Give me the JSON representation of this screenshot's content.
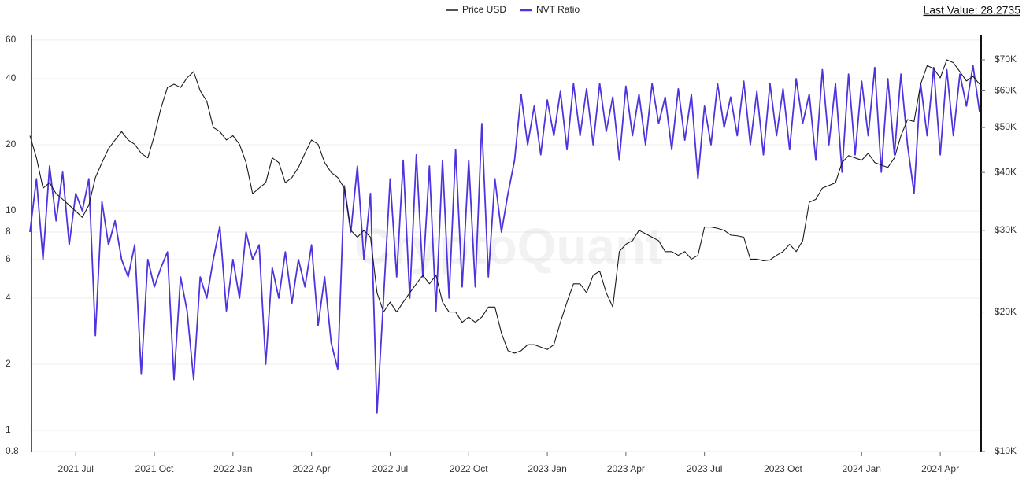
{
  "chart_data": {
    "type": "line",
    "log_scale": true,
    "grid": true,
    "legend_position": "top",
    "last_value_label": "Last Value: 28.2735",
    "watermark": "CryptoQuant",
    "categories": [
      null,
      null,
      null,
      null,
      null,
      null,
      null,
      "2021 Jul",
      null,
      null,
      null,
      null,
      null,
      null,
      null,
      null,
      null,
      null,
      null,
      "2021 Oct",
      null,
      null,
      null,
      null,
      null,
      null,
      null,
      null,
      null,
      null,
      null,
      "2022 Jan",
      null,
      null,
      null,
      null,
      null,
      null,
      null,
      null,
      null,
      null,
      null,
      "2022 Apr",
      null,
      null,
      null,
      null,
      null,
      null,
      null,
      null,
      null,
      null,
      null,
      "2022 Jul",
      null,
      null,
      null,
      null,
      null,
      null,
      null,
      null,
      null,
      null,
      null,
      "2022 Oct",
      null,
      null,
      null,
      null,
      null,
      null,
      null,
      null,
      null,
      null,
      null,
      "2023 Jan",
      null,
      null,
      null,
      null,
      null,
      null,
      null,
      null,
      null,
      null,
      null,
      "2023 Apr",
      null,
      null,
      null,
      null,
      null,
      null,
      null,
      null,
      null,
      null,
      null,
      "2023 Jul",
      null,
      null,
      null,
      null,
      null,
      null,
      null,
      null,
      null,
      null,
      null,
      "2023 Oct",
      null,
      null,
      null,
      null,
      null,
      null,
      null,
      null,
      null,
      null,
      null,
      "2024 Jan",
      null,
      null,
      null,
      null,
      null,
      null,
      null,
      null,
      null,
      null,
      null,
      "2024 Apr",
      null,
      null,
      null,
      null,
      null,
      null
    ],
    "ylim": [
      0.8,
      63
    ],
    "yticks": [
      0.8,
      1,
      2,
      4,
      6,
      8,
      10,
      20,
      40,
      60
    ],
    "y2lim": [
      10000,
      79000
    ],
    "y2ticks": [
      {
        "value": 10000,
        "label": "$10K"
      },
      {
        "value": 20000,
        "label": "$20K"
      },
      {
        "value": 30000,
        "label": "$30K"
      },
      {
        "value": 40000,
        "label": "$40K"
      },
      {
        "value": 50000,
        "label": "$50K"
      },
      {
        "value": 60000,
        "label": "$60K"
      },
      {
        "value": 70000,
        "label": "$70K"
      }
    ],
    "series": [
      {
        "name": "Price USD",
        "color": "#1a1a1a",
        "axis": "y2",
        "values": [
          48000,
          43000,
          37000,
          38000,
          36000,
          35000,
          34000,
          33000,
          32000,
          34000,
          39000,
          42000,
          45000,
          47000,
          49000,
          47000,
          46000,
          44000,
          43000,
          48000,
          55000,
          61000,
          62000,
          61000,
          64000,
          66000,
          60000,
          57000,
          50000,
          49000,
          47000,
          48000,
          46000,
          42000,
          36000,
          37000,
          38000,
          43000,
          42000,
          38000,
          39000,
          41000,
          44000,
          47000,
          46000,
          42000,
          40000,
          39000,
          37000,
          30000,
          29000,
          30000,
          29000,
          22000,
          20000,
          21000,
          20000,
          21000,
          22000,
          23000,
          24000,
          23000,
          24000,
          21000,
          20000,
          20000,
          19000,
          19500,
          19000,
          19500,
          20500,
          20500,
          18000,
          16500,
          16300,
          16500,
          17000,
          17000,
          16800,
          16600,
          17000,
          19000,
          21000,
          23000,
          23000,
          22000,
          24000,
          24500,
          22000,
          20500,
          27000,
          28000,
          28500,
          30000,
          29500,
          29000,
          28500,
          27000,
          27000,
          26500,
          27000,
          26000,
          26500,
          30500,
          30500,
          30300,
          30000,
          29300,
          29200,
          29000,
          26000,
          26000,
          25800,
          25900,
          26500,
          27000,
          28000,
          27000,
          28500,
          34500,
          35000,
          37000,
          37500,
          38000,
          42000,
          43500,
          43000,
          42500,
          44000,
          42000,
          41500,
          41000,
          43000,
          48000,
          52000,
          51500,
          62000,
          68000,
          67000,
          64000,
          70000,
          69000,
          66000,
          63000,
          64500,
          62000
        ]
      },
      {
        "name": "NVT Ratio",
        "color": "#4c35de",
        "axis": "y",
        "values": [
          8,
          14,
          6,
          16,
          9,
          15,
          7,
          12,
          10,
          14,
          2.7,
          11,
          7,
          9,
          6,
          5,
          7,
          1.8,
          6,
          4.5,
          5.5,
          6.5,
          1.7,
          5,
          3.5,
          1.7,
          5,
          4,
          6,
          8.5,
          3.5,
          6,
          4,
          8,
          6,
          7,
          2,
          5.5,
          4,
          6.5,
          3.8,
          6,
          4.5,
          7,
          3,
          5,
          2.5,
          1.9,
          13,
          8,
          16,
          6,
          12,
          1.2,
          4,
          14,
          5,
          17,
          4,
          18,
          5,
          16,
          3.5,
          17,
          4,
          19,
          4.5,
          17,
          4.5,
          25,
          5,
          14,
          8,
          12,
          17,
          34,
          20,
          30,
          18,
          32,
          22,
          35,
          19,
          38,
          22,
          36,
          20,
          38,
          23,
          33,
          17,
          37,
          22,
          34,
          20,
          38,
          25,
          33,
          19,
          36,
          21,
          34,
          14,
          30,
          20,
          38,
          24,
          33,
          22,
          39,
          20,
          35,
          18,
          38,
          22,
          36,
          19,
          40,
          25,
          34,
          17,
          44,
          20,
          38,
          15,
          42,
          18,
          39,
          22,
          45,
          15,
          40,
          18,
          42,
          20,
          12,
          38,
          22,
          45,
          18,
          44,
          22,
          42,
          30,
          46,
          28.2735
        ]
      }
    ]
  }
}
